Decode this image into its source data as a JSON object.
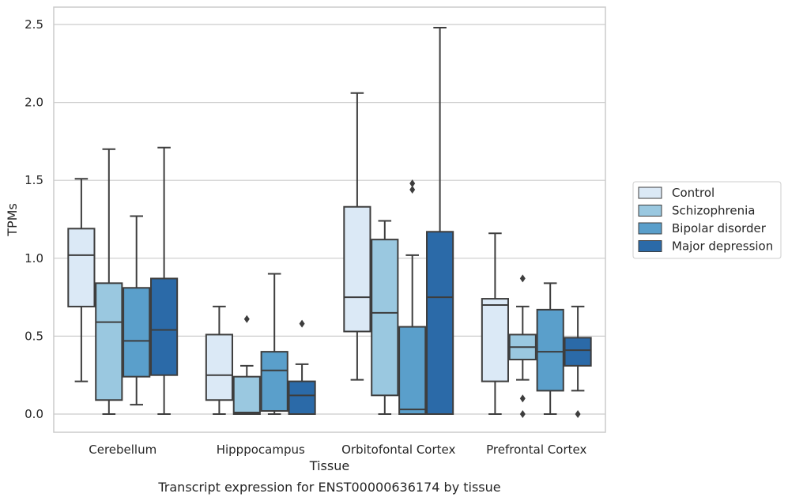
{
  "chart_data": {
    "type": "box",
    "xlabel": "Tissue",
    "ylabel": "TPMs",
    "caption": "Transcript expression for ENST00000636174 by tissue",
    "ylim": [
      -0.12,
      2.61
    ],
    "yticks": [
      "0.0",
      "0.5",
      "1.0",
      "1.5",
      "2.0",
      "2.5"
    ],
    "ytick_values": [
      0,
      0.5,
      1.0,
      1.5,
      2.0,
      2.5
    ],
    "grid": "horizontal",
    "legend_position": "right",
    "categories": [
      "Cerebellum",
      "Hipppocampus",
      "Orbitofontal Cortex",
      "Prefrontal Cortex"
    ],
    "series": [
      {
        "name": "Control",
        "color": "#dbe9f6",
        "boxes": [
          {
            "whisker_low": 0.21,
            "q1": 0.69,
            "median": 1.02,
            "q3": 1.19,
            "whisker_high": 1.51,
            "outliers": []
          },
          {
            "whisker_low": 0.0,
            "q1": 0.09,
            "median": 0.25,
            "q3": 0.51,
            "whisker_high": 0.69,
            "outliers": []
          },
          {
            "whisker_low": 0.22,
            "q1": 0.53,
            "median": 0.75,
            "q3": 1.33,
            "whisker_high": 2.06,
            "outliers": []
          },
          {
            "whisker_low": 0.0,
            "q1": 0.21,
            "median": 0.7,
            "q3": 0.74,
            "whisker_high": 1.16,
            "outliers": []
          }
        ]
      },
      {
        "name": "Schizophrenia",
        "color": "#9ac8e0",
        "boxes": [
          {
            "whisker_low": 0.0,
            "q1": 0.09,
            "median": 0.59,
            "q3": 0.84,
            "whisker_high": 1.7,
            "outliers": []
          },
          {
            "whisker_low": 0.0,
            "q1": 0.0,
            "median": 0.01,
            "q3": 0.24,
            "whisker_high": 0.31,
            "outliers": [
              0.61
            ]
          },
          {
            "whisker_low": 0.0,
            "q1": 0.12,
            "median": 0.65,
            "q3": 1.12,
            "whisker_high": 1.24,
            "outliers": []
          },
          {
            "whisker_low": 0.22,
            "q1": 0.35,
            "median": 0.43,
            "q3": 0.51,
            "whisker_high": 0.69,
            "outliers": [
              0.87,
              0.1,
              0.0
            ]
          }
        ]
      },
      {
        "name": "Bipolar disorder",
        "color": "#5a9fcb",
        "boxes": [
          {
            "whisker_low": 0.06,
            "q1": 0.24,
            "median": 0.47,
            "q3": 0.81,
            "whisker_high": 1.27,
            "outliers": []
          },
          {
            "whisker_low": 0.0,
            "q1": 0.02,
            "median": 0.28,
            "q3": 0.4,
            "whisker_high": 0.9,
            "outliers": []
          },
          {
            "whisker_low": 0.0,
            "q1": 0.0,
            "median": 0.03,
            "q3": 0.56,
            "whisker_high": 1.02,
            "outliers": [
              1.48,
              1.44
            ]
          },
          {
            "whisker_low": 0.0,
            "q1": 0.15,
            "median": 0.4,
            "q3": 0.67,
            "whisker_high": 0.84,
            "outliers": []
          }
        ]
      },
      {
        "name": "Major depression",
        "color": "#2b6aa8",
        "boxes": [
          {
            "whisker_low": 0.0,
            "q1": 0.25,
            "median": 0.54,
            "q3": 0.87,
            "whisker_high": 1.71,
            "outliers": []
          },
          {
            "whisker_low": 0.0,
            "q1": 0.0,
            "median": 0.12,
            "q3": 0.21,
            "whisker_high": 0.32,
            "outliers": [
              0.58
            ]
          },
          {
            "whisker_low": 0.0,
            "q1": 0.0,
            "median": 0.75,
            "q3": 1.17,
            "whisker_high": 2.48,
            "outliers": []
          },
          {
            "whisker_low": 0.15,
            "q1": 0.31,
            "median": 0.41,
            "q3": 0.49,
            "whisker_high": 0.69,
            "outliers": [
              0.0
            ]
          }
        ]
      }
    ]
  }
}
